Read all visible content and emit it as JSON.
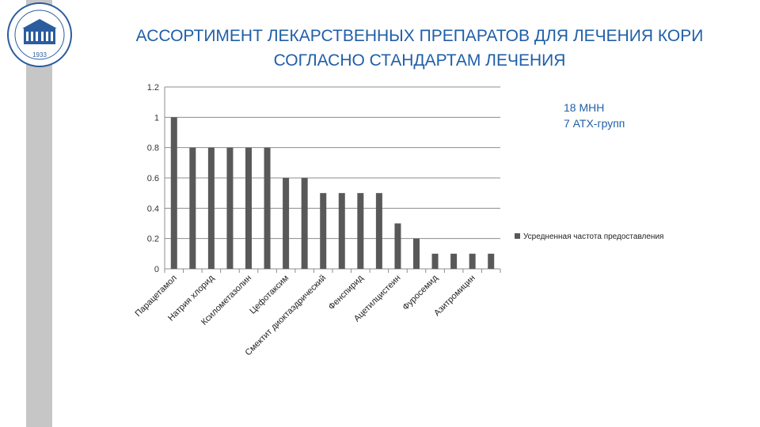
{
  "logo": {
    "year": "1933",
    "ring_text": "ФЕДЕРАЛЬНЫЙ ГОСУДАРСТВЕННЫЙ МЕДИЦИНСКИЙ УНИВЕРСИТЕТ"
  },
  "header": {
    "title_line1": "АССОРТИМЕНТ ЛЕКАРСТВЕННЫХ ПРЕПАРАТОВ  ДЛЯ ЛЕЧЕНИЯ КОРИ",
    "title_line2": "СОГЛАСНО СТАНДАРТАМ ЛЕЧЕНИЯ"
  },
  "note": {
    "line1": "18 МНН",
    "line2": "7 АТХ-групп"
  },
  "colors": {
    "title": "#1f5fa8",
    "bar": "#595959",
    "sidebar": "#c6c6c6"
  },
  "chart_data": {
    "type": "bar",
    "categories": [
      "Парацетамол",
      "",
      "Натрия хлорид",
      "",
      "Ксилометазолин",
      "",
      "Цефотаксим",
      "",
      "Смектит диоктаэдрический",
      "",
      "Фенспирид",
      "",
      "Ацетилцистеин",
      "",
      "Фуросемид",
      "",
      "Азитромицин",
      ""
    ],
    "series": [
      {
        "name": "Усредненная частота предоставления",
        "values": [
          1,
          0.8,
          0.8,
          0.8,
          0.8,
          0.8,
          0.6,
          0.6,
          0.5,
          0.5,
          0.5,
          0.5,
          0.3,
          0.2,
          0.1,
          0.1,
          0.1,
          0.1
        ]
      }
    ],
    "yticks": [
      "0",
      "0.2",
      "0.4",
      "0.6",
      "0.8",
      "1",
      "1.2"
    ],
    "ylim": [
      0,
      1.2
    ],
    "grid": true,
    "legend_position": "right"
  }
}
